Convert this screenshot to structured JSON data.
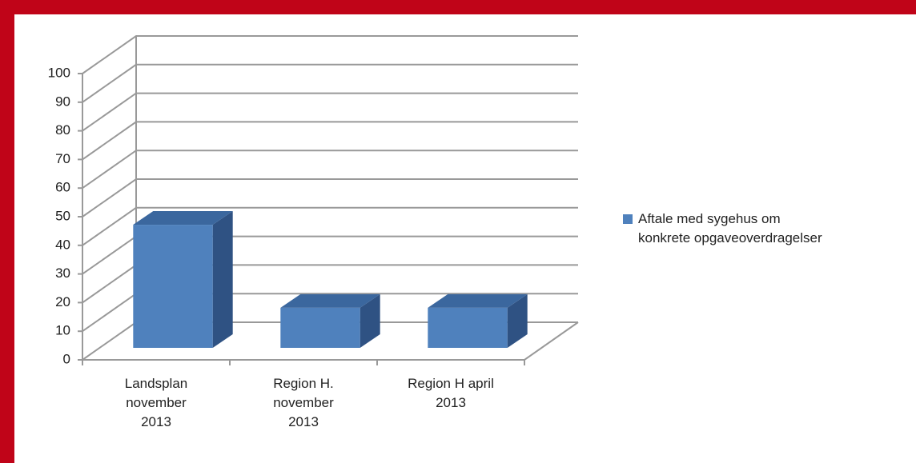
{
  "chart_data": {
    "type": "bar3d",
    "categories": [
      "Landsplan\nnovember\n2013",
      "Region H.\nnovember\n2013",
      "Region H april\n2013"
    ],
    "series": [
      {
        "name": "Aftale med sygehus om\nkonkrete opgaveoverdragelser",
        "color": "#4f81bd",
        "values": [
          43,
          14,
          14
        ]
      }
    ],
    "ylim": [
      0,
      100
    ],
    "yticks": [
      0,
      10,
      20,
      30,
      40,
      50,
      60,
      70,
      80,
      90,
      100
    ],
    "grid": true,
    "legend": "right"
  }
}
